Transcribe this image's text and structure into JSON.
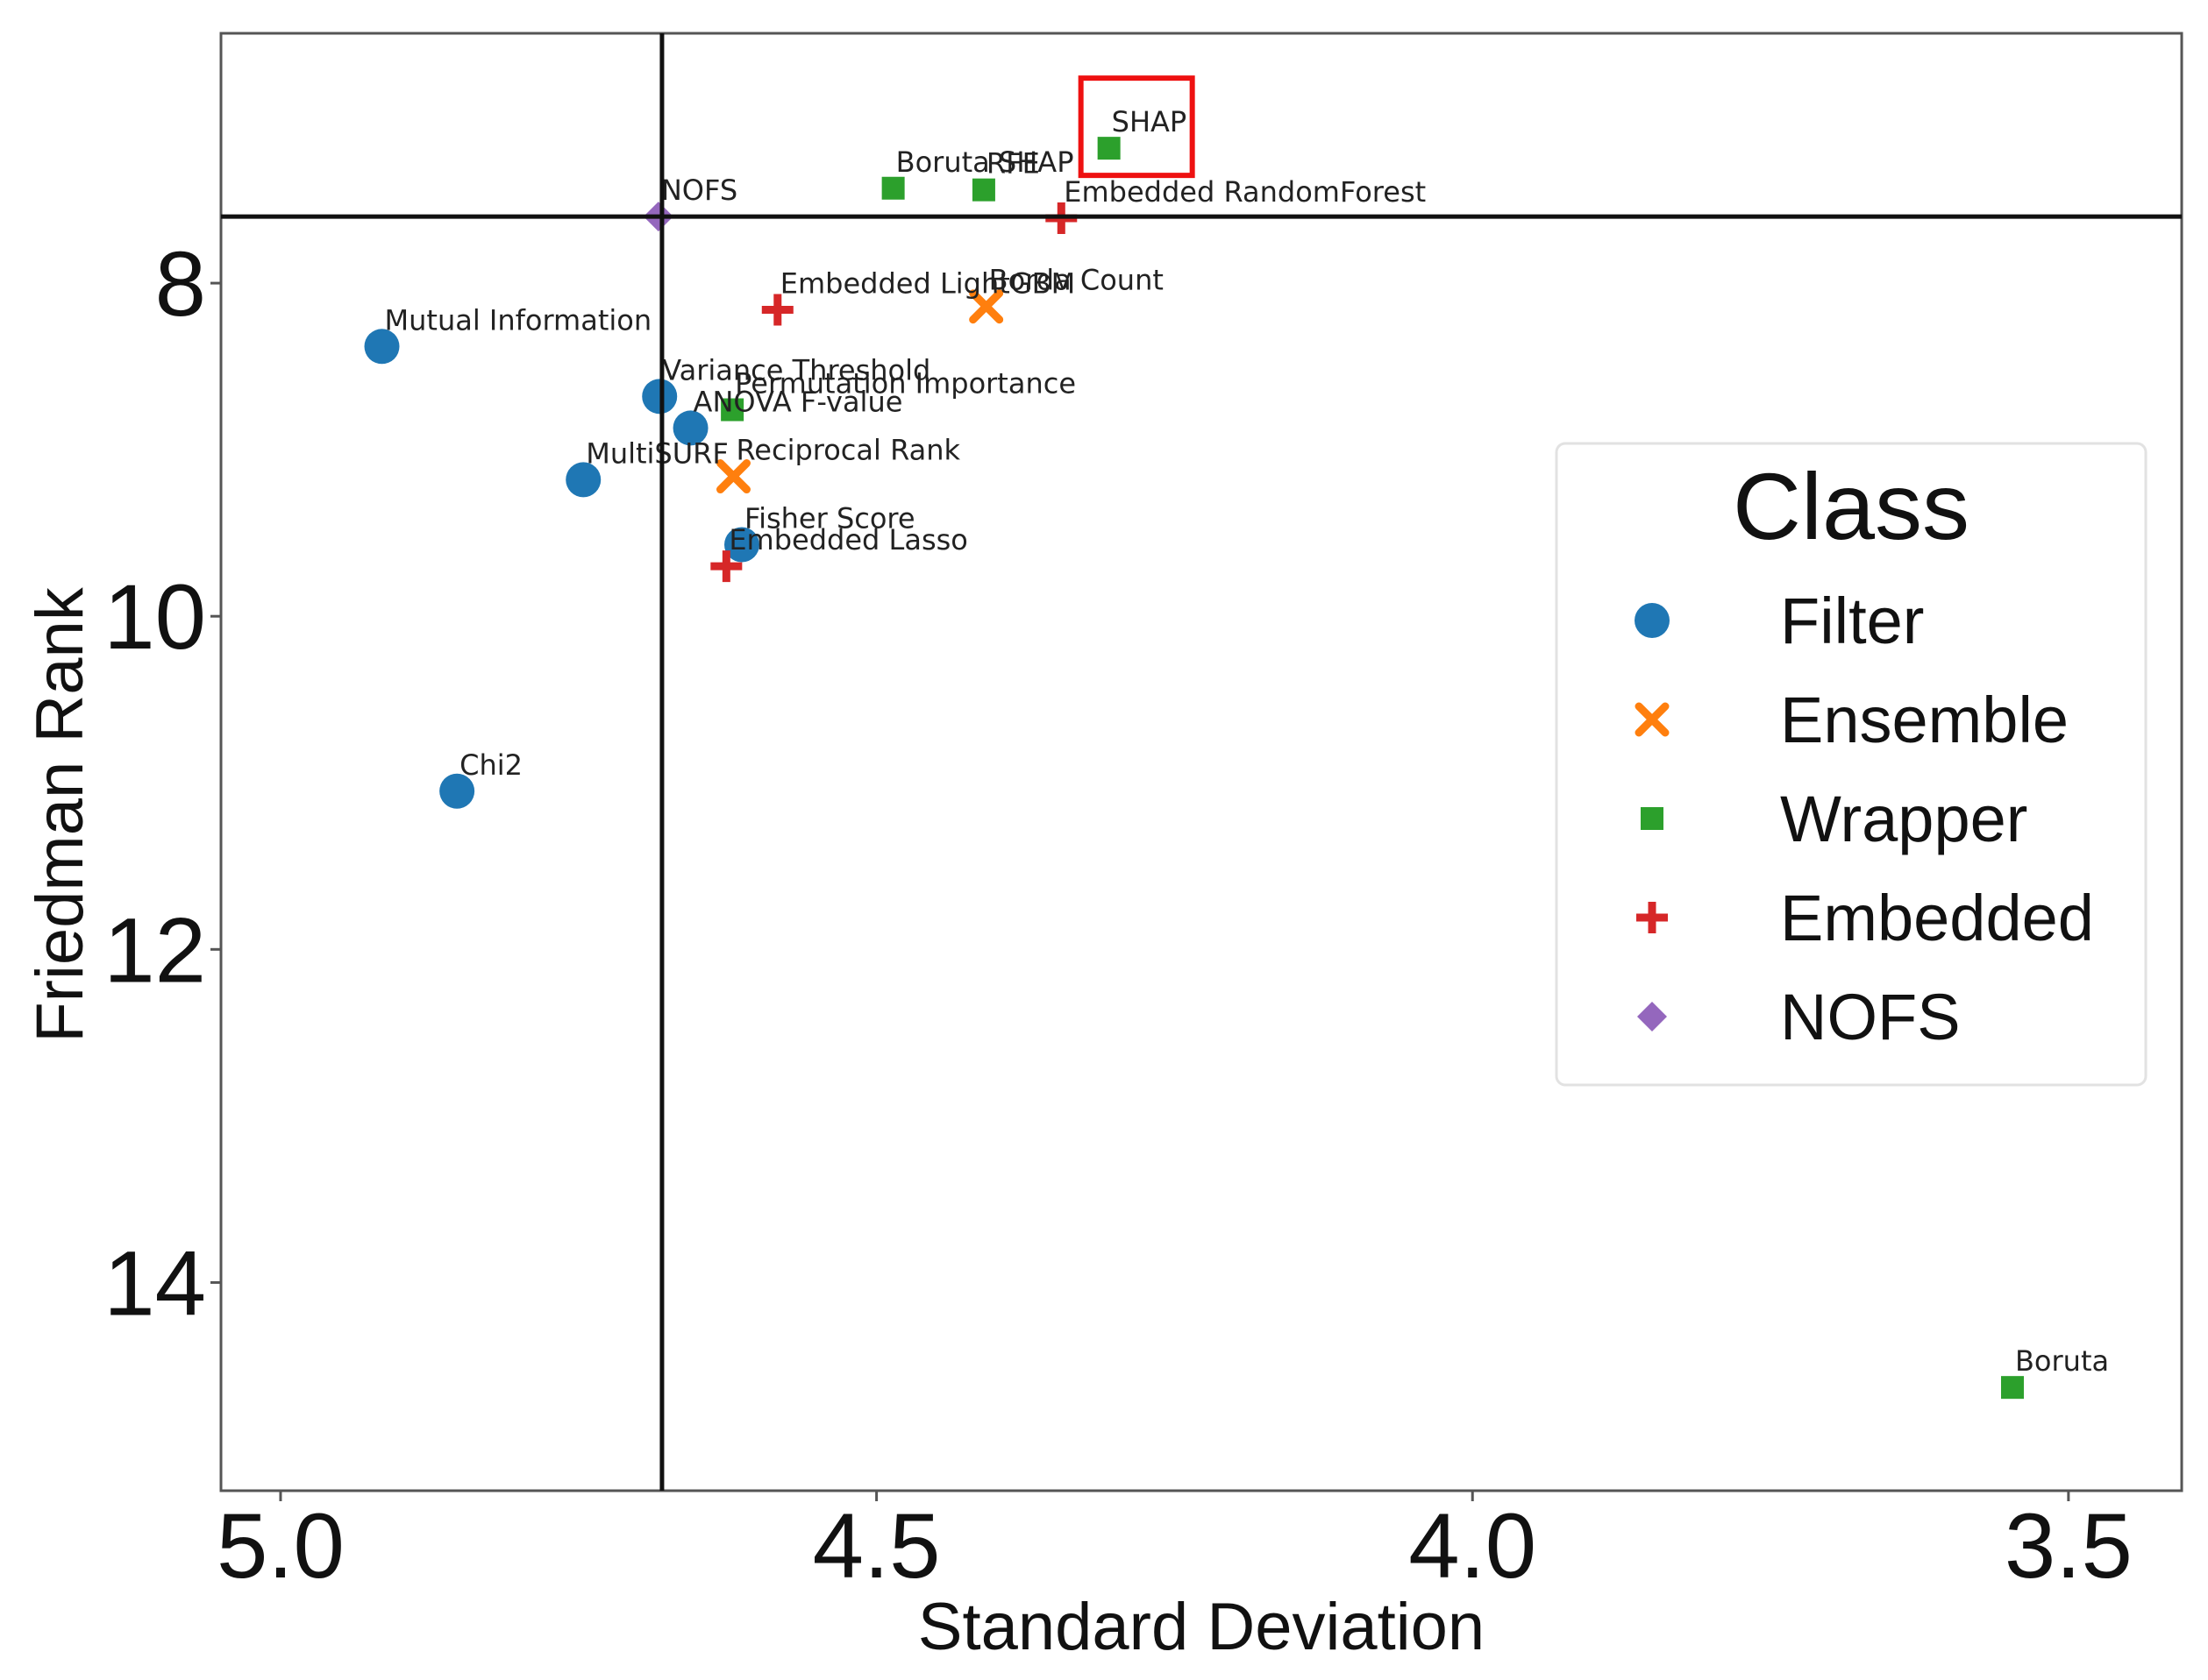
{
  "chart_data": {
    "type": "scatter",
    "title": "",
    "xlabel": "Standard Deviation",
    "ylabel": "Friedman Rank",
    "xlim": [
      5.05,
      3.405
    ],
    "ylim": [
      6.5,
      15.25
    ],
    "x_ticks": [
      "5.0",
      "4.5",
      "4.0",
      "3.5"
    ],
    "x_tick_values": [
      5.0,
      4.5,
      4.0,
      3.5
    ],
    "y_ticks": [
      "8",
      "10",
      "12",
      "14"
    ],
    "y_tick_values": [
      8,
      10,
      12,
      14
    ],
    "grid": false,
    "x_reference_line": 4.68,
    "y_reference_line": 7.6,
    "highlight_label": "SHAP",
    "legend": {
      "title": "Class",
      "placement": "right",
      "entries": [
        "Filter",
        "Ensemble",
        "Wrapper",
        "Embedded",
        "NOFS"
      ]
    },
    "classes": {
      "Filter": {
        "color": "#1f77b4",
        "marker": "circle"
      },
      "Ensemble": {
        "color": "#ff7f0e",
        "marker": "x"
      },
      "Wrapper": {
        "color": "#2ca02c",
        "marker": "square"
      },
      "Embedded": {
        "color": "#d62728",
        "marker": "plus"
      },
      "NOFS": {
        "color": "#9467bd",
        "marker": "diamond"
      }
    },
    "points": [
      {
        "label": "Mutual Information",
        "class": "Filter",
        "x": 4.915,
        "y": 8.38
      },
      {
        "label": "Chi2",
        "class": "Filter",
        "x": 4.852,
        "y": 11.05
      },
      {
        "label": "MultiSURF",
        "class": "Filter",
        "x": 4.746,
        "y": 9.18
      },
      {
        "label": "Variance Threshold",
        "class": "Filter",
        "x": 4.682,
        "y": 8.68
      },
      {
        "label": "ANOVA F-value",
        "class": "Filter",
        "x": 4.656,
        "y": 8.87
      },
      {
        "label": "Fisher Score",
        "class": "Filter",
        "x": 4.613,
        "y": 9.57
      },
      {
        "label": "Reciprocal Rank",
        "class": "Ensemble",
        "x": 4.62,
        "y": 9.16
      },
      {
        "label": "Borda Count",
        "class": "Ensemble",
        "x": 4.408,
        "y": 8.14
      },
      {
        "label": "Permutation Importance",
        "class": "Wrapper",
        "x": 4.621,
        "y": 8.76
      },
      {
        "label": "Boruta SHAP",
        "class": "Wrapper",
        "x": 4.486,
        "y": 7.43
      },
      {
        "label": "RFE",
        "class": "Wrapper",
        "x": 4.41,
        "y": 7.44
      },
      {
        "label": "SHAP",
        "class": "Wrapper",
        "x": 4.305,
        "y": 7.19
      },
      {
        "label": "Boruta",
        "class": "Wrapper",
        "x": 3.547,
        "y": 14.63
      },
      {
        "label": "Embedded LightGBM",
        "class": "Embedded",
        "x": 4.583,
        "y": 8.16
      },
      {
        "label": "Embedded RandomForest",
        "class": "Embedded",
        "x": 4.345,
        "y": 7.61
      },
      {
        "label": "Embedded Lasso",
        "class": "Embedded",
        "x": 4.626,
        "y": 9.7
      },
      {
        "label": "NOFS",
        "class": "NOFS",
        "x": 4.683,
        "y": 7.6
      }
    ]
  }
}
